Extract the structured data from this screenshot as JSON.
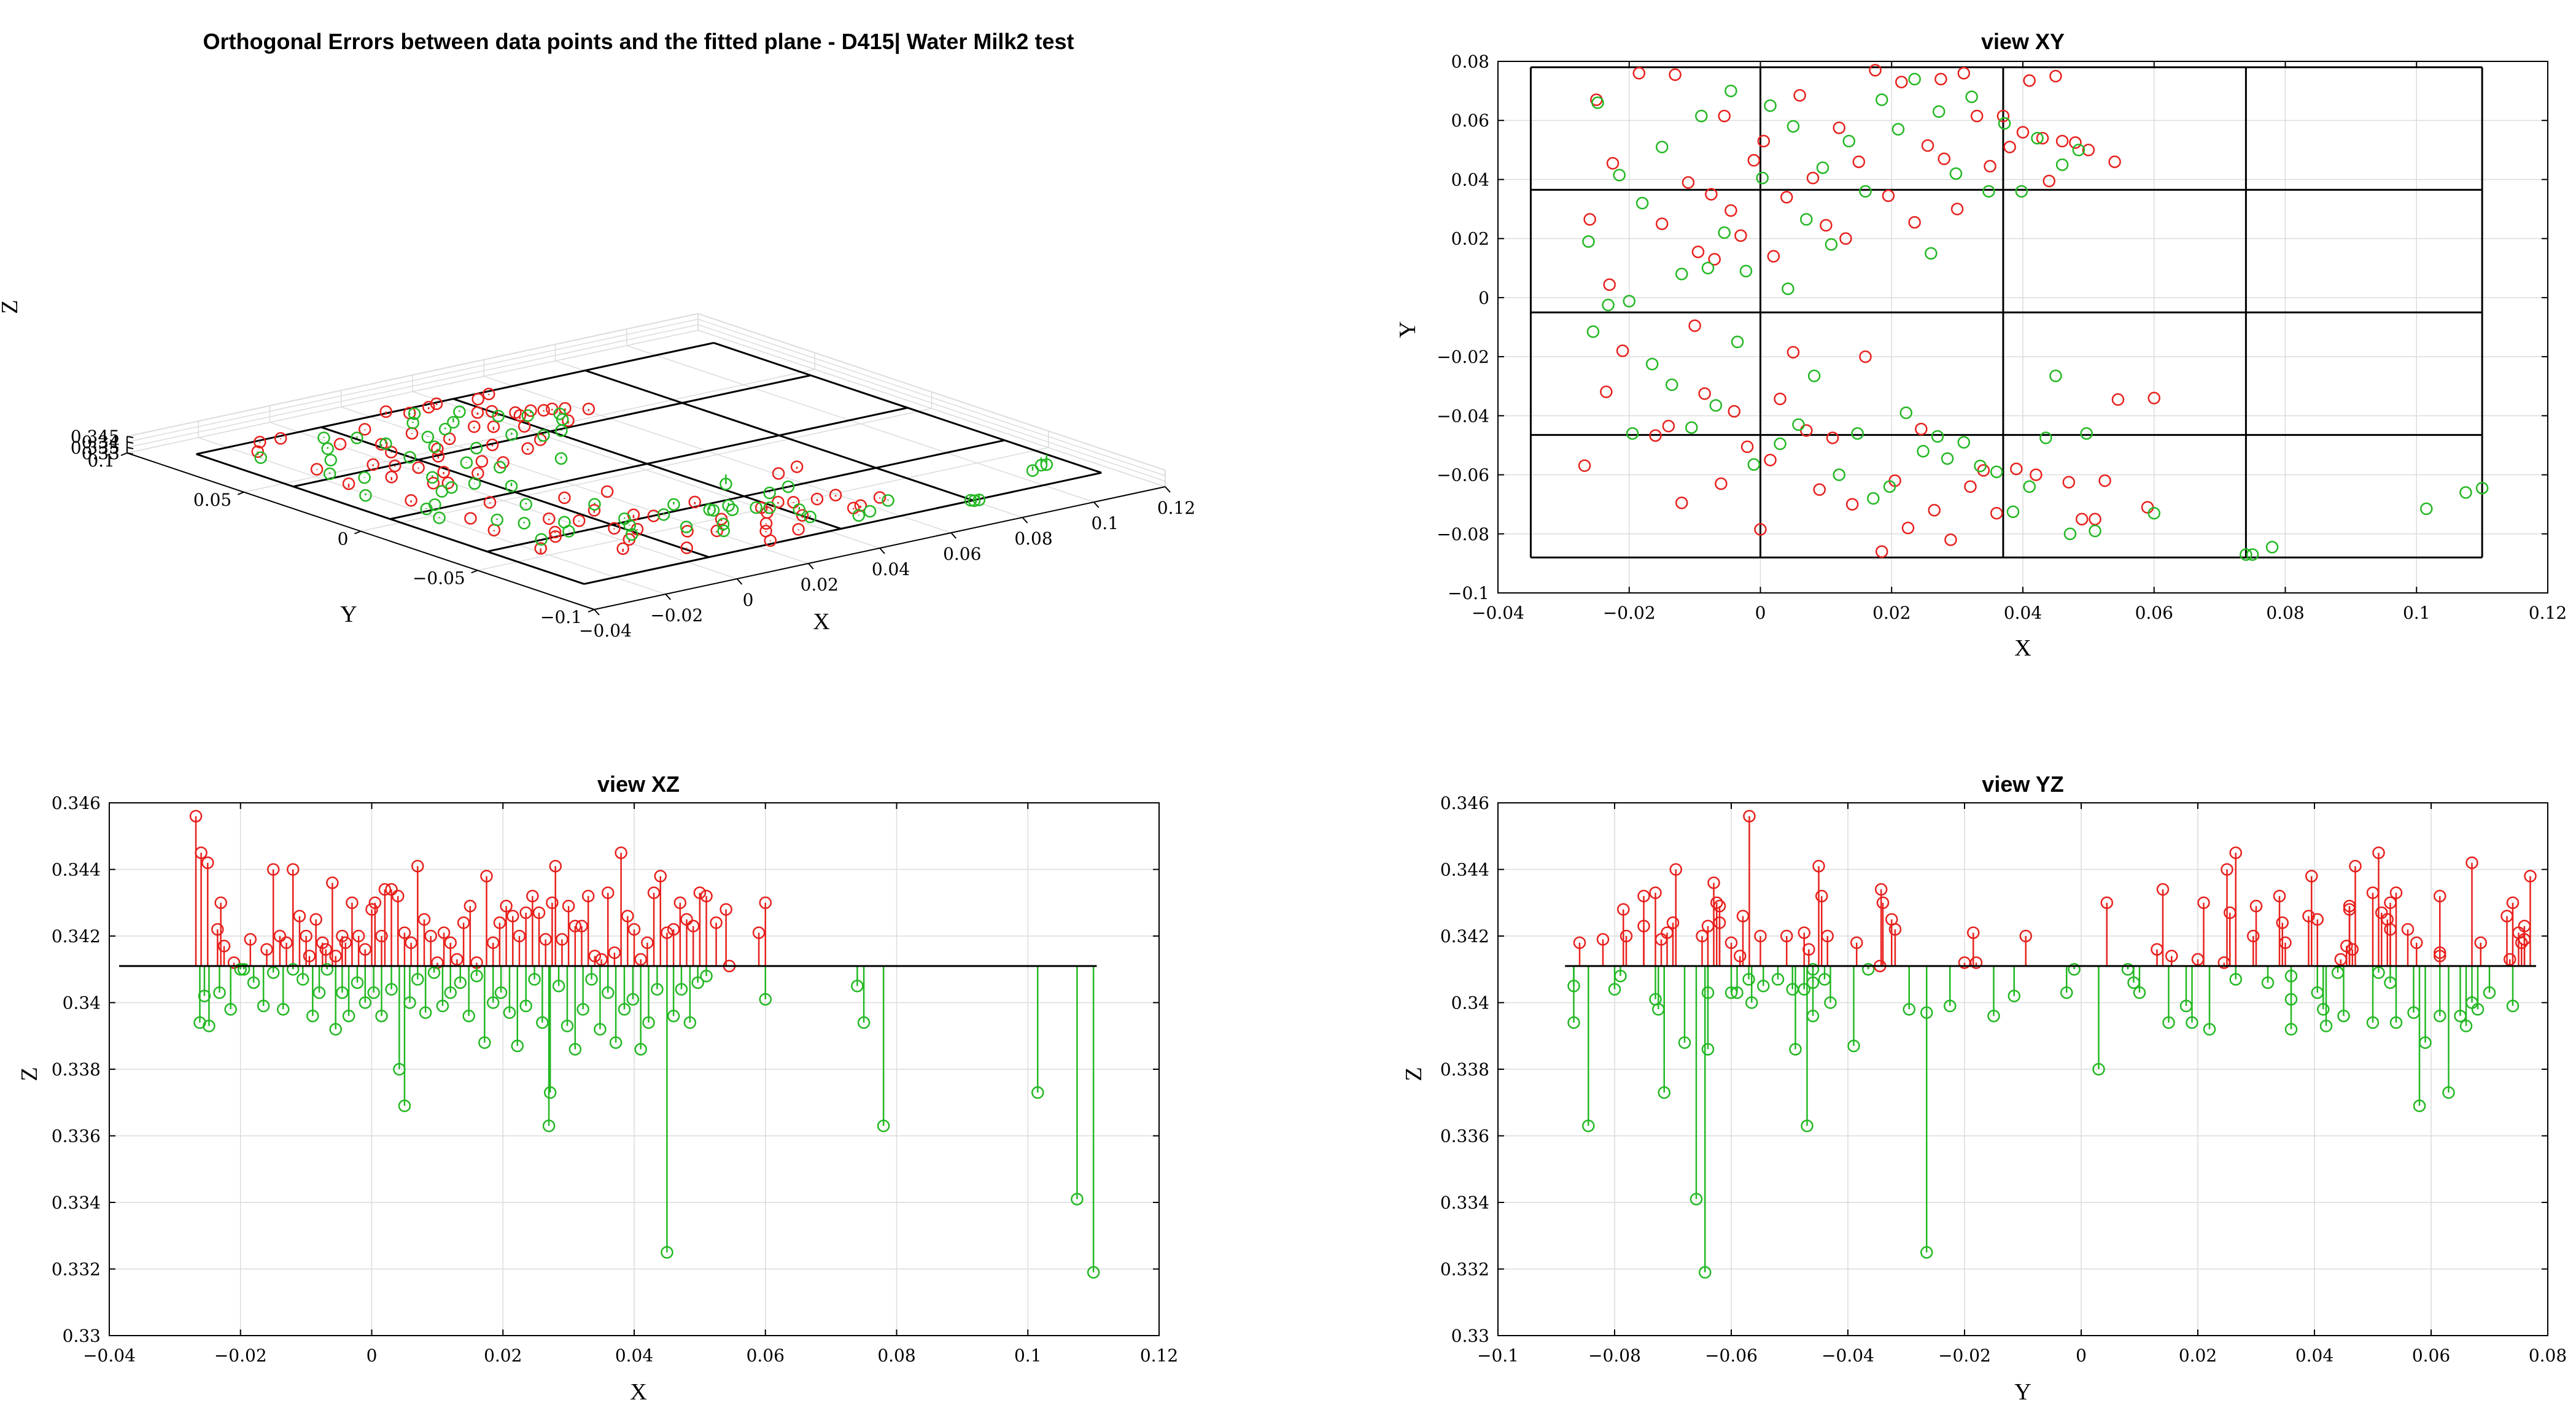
{
  "colors": {
    "above": "#e8201c",
    "below": "#22b822",
    "axis": "#000000",
    "grid": "#dcdcdc",
    "plane": "#000000"
  },
  "plane_z": 0.3411,
  "chart_data": [
    {
      "id": "p3d",
      "type": "scatter3d-stem",
      "title": "Orthogonal Errors between data points and the fitted plane - D415| Water Milk2 test",
      "xlabel": "X",
      "ylabel": "Y",
      "zlabel": "Z",
      "xlim": [
        -0.04,
        0.12
      ],
      "ylim": [
        -0.1,
        0.1
      ],
      "zlim": [
        0.33,
        0.345
      ],
      "xticks": [
        "-0.04",
        "-0.02",
        "0",
        "0.02",
        "0.04",
        "0.06",
        "0.08",
        "0.1",
        "0.12"
      ],
      "yticks": [
        "-0.1",
        "-0.05",
        "0",
        "0.05",
        "0.1"
      ],
      "zticks": [
        "0.33",
        "0.335",
        "0.34",
        "0.345"
      ]
    },
    {
      "id": "pxy",
      "type": "scatter",
      "title": "view XY",
      "xlabel": "X",
      "ylabel": "Y",
      "xlim": [
        -0.04,
        0.12
      ],
      "ylim": [
        -0.1,
        0.08
      ],
      "xticks": [
        "-0.04",
        "-0.02",
        "0",
        "0.02",
        "0.04",
        "0.06",
        "0.08",
        "0.1",
        "0.12"
      ],
      "yticks": [
        "-0.1",
        "-0.08",
        "-0.06",
        "-0.04",
        "-0.02",
        "0",
        "0.02",
        "0.04",
        "0.06",
        "0.08"
      ],
      "grid_x": [
        -0.035,
        0.0,
        0.037,
        0.074,
        0.11
      ],
      "grid_y": [
        -0.088,
        -0.0465,
        -0.005,
        0.0365,
        0.078
      ]
    },
    {
      "id": "pxz",
      "type": "stem",
      "title": "view XZ",
      "xlabel": "X",
      "ylabel": "Z",
      "xlim": [
        -0.04,
        0.12
      ],
      "ylim": [
        0.33,
        0.346
      ],
      "xticks": [
        "-0.04",
        "-0.02",
        "0",
        "0.02",
        "0.04",
        "0.06",
        "0.08",
        "0.1",
        "0.12"
      ],
      "yticks": [
        "0.33",
        "0.332",
        "0.334",
        "0.336",
        "0.338",
        "0.34",
        "0.342",
        "0.344",
        "0.346"
      ]
    },
    {
      "id": "pyz",
      "type": "stem",
      "title": "view YZ",
      "xlabel": "Y",
      "ylabel": "Z",
      "xlim": [
        -0.1,
        0.08
      ],
      "ylim": [
        0.33,
        0.346
      ],
      "xticks": [
        "-0.1",
        "-0.08",
        "-0.06",
        "-0.04",
        "-0.02",
        "0",
        "0.02",
        "0.04",
        "0.06",
        "0.08"
      ],
      "yticks": [
        "0.33",
        "0.332",
        "0.334",
        "0.336",
        "0.338",
        "0.34",
        "0.342",
        "0.344",
        "0.346"
      ]
    }
  ],
  "points": [
    {
      "x": -0.0268,
      "y": -0.0569,
      "z": 0.3456
    },
    {
      "x": -0.026,
      "y": 0.0265,
      "z": 0.3445
    },
    {
      "x": -0.025,
      "y": 0.067,
      "z": 0.3442
    },
    {
      "x": -0.0235,
      "y": -0.0319,
      "z": 0.3422
    },
    {
      "x": -0.023,
      "y": 0.0044,
      "z": 0.343
    },
    {
      "x": -0.0225,
      "y": 0.0455,
      "z": 0.3417
    },
    {
      "x": -0.021,
      "y": -0.018,
      "z": 0.3412
    },
    {
      "x": -0.02,
      "y": -0.0012,
      "z": 0.341
    },
    {
      "x": -0.0185,
      "y": 0.076,
      "z": 0.3419
    },
    {
      "x": -0.016,
      "y": -0.0467,
      "z": 0.3416
    },
    {
      "x": -0.015,
      "y": 0.025,
      "z": 0.344
    },
    {
      "x": -0.014,
      "y": -0.0435,
      "z": 0.342
    },
    {
      "x": -0.013,
      "y": 0.0755,
      "z": 0.3418
    },
    {
      "x": -0.012,
      "y": -0.0695,
      "z": 0.344
    },
    {
      "x": -0.011,
      "y": 0.039,
      "z": 0.3426
    },
    {
      "x": -0.01,
      "y": -0.0095,
      "z": 0.342
    },
    {
      "x": -0.0095,
      "y": 0.0155,
      "z": 0.3414
    },
    {
      "x": -0.0085,
      "y": -0.0325,
      "z": 0.3425
    },
    {
      "x": -0.0075,
      "y": 0.035,
      "z": 0.3418
    },
    {
      "x": -0.007,
      "y": 0.013,
      "z": 0.3416
    },
    {
      "x": -0.006,
      "y": -0.063,
      "z": 0.3436
    },
    {
      "x": -0.0055,
      "y": 0.0615,
      "z": 0.3414
    },
    {
      "x": -0.0045,
      "y": 0.0295,
      "z": 0.342
    },
    {
      "x": -0.004,
      "y": -0.0385,
      "z": 0.3418
    },
    {
      "x": -0.003,
      "y": 0.021,
      "z": 0.343
    },
    {
      "x": -0.002,
      "y": -0.0505,
      "z": 0.342
    },
    {
      "x": -0.001,
      "y": 0.0465,
      "z": 0.3416
    },
    {
      "x": 0.0,
      "y": -0.0785,
      "z": 0.3428
    },
    {
      "x": 0.0005,
      "y": 0.053,
      "z": 0.343
    },
    {
      "x": 0.0015,
      "y": -0.055,
      "z": 0.342
    },
    {
      "x": 0.002,
      "y": 0.014,
      "z": 0.3434
    },
    {
      "x": 0.003,
      "y": -0.0343,
      "z": 0.3434
    },
    {
      "x": 0.004,
      "y": 0.034,
      "z": 0.3432
    },
    {
      "x": 0.005,
      "y": -0.0185,
      "z": 0.3421
    },
    {
      "x": 0.006,
      "y": 0.0685,
      "z": 0.3418
    },
    {
      "x": 0.007,
      "y": -0.045,
      "z": 0.3441
    },
    {
      "x": 0.008,
      "y": 0.0405,
      "z": 0.3425
    },
    {
      "x": 0.009,
      "y": -0.065,
      "z": 0.342
    },
    {
      "x": 0.01,
      "y": 0.0245,
      "z": 0.3412
    },
    {
      "x": 0.011,
      "y": -0.0475,
      "z": 0.3421
    },
    {
      "x": 0.012,
      "y": 0.0575,
      "z": 0.3418
    },
    {
      "x": 0.013,
      "y": 0.02,
      "z": 0.3413
    },
    {
      "x": 0.014,
      "y": -0.07,
      "z": 0.3424
    },
    {
      "x": 0.015,
      "y": 0.046,
      "z": 0.3429
    },
    {
      "x": 0.016,
      "y": -0.02,
      "z": 0.3412
    },
    {
      "x": 0.0175,
      "y": 0.077,
      "z": 0.3438
    },
    {
      "x": 0.0185,
      "y": -0.086,
      "z": 0.3418
    },
    {
      "x": 0.0195,
      "y": 0.0345,
      "z": 0.3424
    },
    {
      "x": 0.0205,
      "y": -0.062,
      "z": 0.3429
    },
    {
      "x": 0.0215,
      "y": 0.073,
      "z": 0.3426
    },
    {
      "x": 0.0225,
      "y": -0.078,
      "z": 0.342
    },
    {
      "x": 0.0235,
      "y": 0.0255,
      "z": 0.3427
    },
    {
      "x": 0.0245,
      "y": -0.0445,
      "z": 0.3432
    },
    {
      "x": 0.0255,
      "y": 0.0515,
      "z": 0.3427
    },
    {
      "x": 0.0265,
      "y": -0.072,
      "z": 0.3419
    },
    {
      "x": 0.0275,
      "y": 0.074,
      "z": 0.343
    },
    {
      "x": 0.028,
      "y": 0.047,
      "z": 0.3441
    },
    {
      "x": 0.029,
      "y": -0.082,
      "z": 0.3419
    },
    {
      "x": 0.03,
      "y": 0.03,
      "z": 0.3429
    },
    {
      "x": 0.031,
      "y": 0.076,
      "z": 0.3423
    },
    {
      "x": 0.032,
      "y": -0.064,
      "z": 0.3423
    },
    {
      "x": 0.033,
      "y": 0.0615,
      "z": 0.3432
    },
    {
      "x": 0.034,
      "y": -0.0585,
      "z": 0.3414
    },
    {
      "x": 0.035,
      "y": 0.0445,
      "z": 0.3413
    },
    {
      "x": 0.036,
      "y": -0.073,
      "z": 0.3433
    },
    {
      "x": 0.037,
      "y": 0.0615,
      "z": 0.3415
    },
    {
      "x": 0.038,
      "y": 0.051,
      "z": 0.3445
    },
    {
      "x": 0.039,
      "y": -0.058,
      "z": 0.3426
    },
    {
      "x": 0.04,
      "y": 0.056,
      "z": 0.3422
    },
    {
      "x": 0.041,
      "y": 0.0735,
      "z": 0.3413
    },
    {
      "x": 0.042,
      "y": -0.06,
      "z": 0.3418
    },
    {
      "x": 0.043,
      "y": 0.054,
      "z": 0.3433
    },
    {
      "x": 0.044,
      "y": 0.0395,
      "z": 0.3438
    },
    {
      "x": 0.045,
      "y": 0.075,
      "z": 0.3421
    },
    {
      "x": 0.046,
      "y": 0.053,
      "z": 0.3422
    },
    {
      "x": 0.047,
      "y": -0.0625,
      "z": 0.343
    },
    {
      "x": 0.048,
      "y": 0.0525,
      "z": 0.3425
    },
    {
      "x": 0.049,
      "y": -0.075,
      "z": 0.3423
    },
    {
      "x": 0.05,
      "y": 0.05,
      "z": 0.3433
    },
    {
      "x": 0.051,
      "y": -0.075,
      "z": 0.3432
    },
    {
      "x": 0.0525,
      "y": -0.062,
      "z": 0.3424
    },
    {
      "x": 0.054,
      "y": 0.046,
      "z": 0.3428
    },
    {
      "x": 0.059,
      "y": -0.071,
      "z": 0.3421
    },
    {
      "x": 0.06,
      "y": -0.034,
      "z": 0.343
    },
    {
      "x": -0.0262,
      "y": 0.019,
      "z": 0.3394
    },
    {
      "x": -0.0255,
      "y": -0.0115,
      "z": 0.3402
    },
    {
      "x": -0.0248,
      "y": 0.066,
      "z": 0.3393
    },
    {
      "x": -0.0232,
      "y": -0.0025,
      "z": 0.3403
    },
    {
      "x": -0.0215,
      "y": 0.0415,
      "z": 0.3398
    },
    {
      "x": -0.0195,
      "y": -0.046,
      "z": 0.341
    },
    {
      "x": -0.018,
      "y": 0.032,
      "z": 0.3406
    },
    {
      "x": -0.0165,
      "y": -0.0225,
      "z": 0.3399
    },
    {
      "x": -0.015,
      "y": 0.051,
      "z": 0.3409
    },
    {
      "x": -0.0135,
      "y": -0.0295,
      "z": 0.3398
    },
    {
      "x": -0.012,
      "y": 0.008,
      "z": 0.341
    },
    {
      "x": -0.0105,
      "y": -0.044,
      "z": 0.3407
    },
    {
      "x": -0.009,
      "y": 0.0615,
      "z": 0.3396
    },
    {
      "x": -0.008,
      "y": 0.01,
      "z": 0.3403
    },
    {
      "x": -0.0068,
      "y": -0.0365,
      "z": 0.341
    },
    {
      "x": -0.0055,
      "y": 0.022,
      "z": 0.3392
    },
    {
      "x": -0.0045,
      "y": 0.07,
      "z": 0.3403
    },
    {
      "x": -0.0035,
      "y": -0.015,
      "z": 0.3396
    },
    {
      "x": -0.0022,
      "y": 0.009,
      "z": 0.3406
    },
    {
      "x": -0.001,
      "y": -0.0565,
      "z": 0.34
    },
    {
      "x": 0.0003,
      "y": 0.0405,
      "z": 0.3403
    },
    {
      "x": 0.0015,
      "y": 0.065,
      "z": 0.3396
    },
    {
      "x": 0.003,
      "y": -0.0495,
      "z": 0.3404
    },
    {
      "x": 0.0042,
      "y": 0.003,
      "z": 0.338
    },
    {
      "x": 0.005,
      "y": 0.058,
      "z": 0.3369
    },
    {
      "x": 0.0058,
      "y": -0.043,
      "z": 0.34
    },
    {
      "x": 0.007,
      "y": 0.0265,
      "z": 0.3407
    },
    {
      "x": 0.0082,
      "y": -0.0265,
      "z": 0.3397
    },
    {
      "x": 0.0095,
      "y": 0.044,
      "z": 0.3409
    },
    {
      "x": 0.0108,
      "y": 0.018,
      "z": 0.3399
    },
    {
      "x": 0.012,
      "y": -0.06,
      "z": 0.3403
    },
    {
      "x": 0.0135,
      "y": 0.053,
      "z": 0.3406
    },
    {
      "x": 0.0148,
      "y": -0.046,
      "z": 0.3396
    },
    {
      "x": 0.016,
      "y": 0.036,
      "z": 0.3408
    },
    {
      "x": 0.0172,
      "y": -0.068,
      "z": 0.3388
    },
    {
      "x": 0.0185,
      "y": 0.067,
      "z": 0.34
    },
    {
      "x": 0.0197,
      "y": -0.064,
      "z": 0.3403
    },
    {
      "x": 0.021,
      "y": 0.057,
      "z": 0.3397
    },
    {
      "x": 0.0222,
      "y": -0.039,
      "z": 0.3387
    },
    {
      "x": 0.0235,
      "y": 0.074,
      "z": 0.3399
    },
    {
      "x": 0.0248,
      "y": -0.052,
      "z": 0.3407
    },
    {
      "x": 0.026,
      "y": 0.015,
      "z": 0.3394
    },
    {
      "x": 0.027,
      "y": -0.047,
      "z": 0.3363
    },
    {
      "x": 0.0272,
      "y": 0.063,
      "z": 0.3373
    },
    {
      "x": 0.0285,
      "y": -0.0545,
      "z": 0.3405
    },
    {
      "x": 0.0298,
      "y": 0.042,
      "z": 0.3393
    },
    {
      "x": 0.031,
      "y": -0.049,
      "z": 0.3386
    },
    {
      "x": 0.0322,
      "y": 0.068,
      "z": 0.3398
    },
    {
      "x": 0.0335,
      "y": -0.057,
      "z": 0.3407
    },
    {
      "x": 0.0348,
      "y": 0.036,
      "z": 0.3392
    },
    {
      "x": 0.036,
      "y": -0.059,
      "z": 0.3403
    },
    {
      "x": 0.0372,
      "y": 0.059,
      "z": 0.3388
    },
    {
      "x": 0.0385,
      "y": -0.0725,
      "z": 0.3398
    },
    {
      "x": 0.0398,
      "y": 0.036,
      "z": 0.3401
    },
    {
      "x": 0.041,
      "y": -0.064,
      "z": 0.3386
    },
    {
      "x": 0.0422,
      "y": 0.054,
      "z": 0.3394
    },
    {
      "x": 0.0435,
      "y": -0.0475,
      "z": 0.3404
    },
    {
      "x": 0.045,
      "y": -0.0265,
      "z": 0.3325
    },
    {
      "x": 0.046,
      "y": 0.045,
      "z": 0.3396
    },
    {
      "x": 0.0472,
      "y": -0.08,
      "z": 0.3404
    },
    {
      "x": 0.0485,
      "y": 0.05,
      "z": 0.3394
    },
    {
      "x": 0.0497,
      "y": -0.046,
      "z": 0.3406
    },
    {
      "x": 0.051,
      "y": -0.079,
      "z": 0.3408
    },
    {
      "x": 0.0545,
      "y": -0.0345,
      "z": 0.3411
    },
    {
      "x": 0.06,
      "y": -0.073,
      "z": 0.3401
    },
    {
      "x": 0.074,
      "y": -0.087,
      "z": 0.3405
    },
    {
      "x": 0.075,
      "y": -0.087,
      "z": 0.3394
    },
    {
      "x": 0.078,
      "y": -0.0845,
      "z": 0.3363
    },
    {
      "x": 0.1015,
      "y": -0.0715,
      "z": 0.3373
    },
    {
      "x": 0.1075,
      "y": -0.066,
      "z": 0.3341
    },
    {
      "x": 0.11,
      "y": -0.0645,
      "z": 0.3319
    }
  ]
}
